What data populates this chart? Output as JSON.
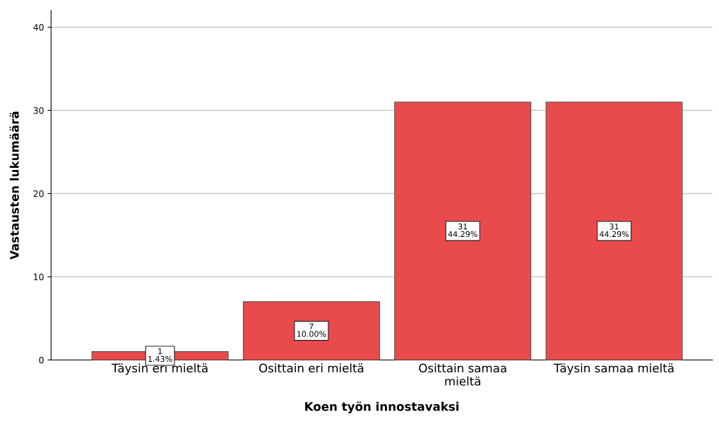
{
  "chart_data": {
    "type": "bar",
    "xlabel": "Koen työn innostavaksi",
    "ylabel": "Vastausten lukumäärä",
    "categories": [
      "Täysin eri mieltä",
      "Osittain eri mieltä",
      "Osittain samaa\nmieltä",
      "Täysin samaa mieltä"
    ],
    "values": [
      1,
      7,
      31,
      31
    ],
    "value_labels": [
      "1\n1.43%",
      "7\n10.00%",
      "31\n44.29%",
      "31\n44.29%"
    ],
    "color": "#e94b4c",
    "ylim": [
      0,
      42
    ],
    "yticks": [
      0,
      10,
      20,
      30,
      40
    ],
    "grid": "y",
    "legend": false
  }
}
